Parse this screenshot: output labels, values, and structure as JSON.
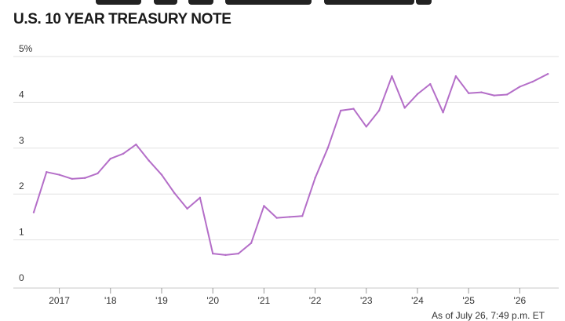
{
  "chart_data": {
    "type": "line",
    "title": "U.S. 10 YEAR TREASURY NOTE",
    "subtitle": "",
    "xlabel": "",
    "ylabel": "",
    "ylim": [
      0,
      5
    ],
    "xlim": [
      2016.5,
      2026.7
    ],
    "y_ticks": [
      {
        "value": 0,
        "label": "0"
      },
      {
        "value": 1,
        "label": "1"
      },
      {
        "value": 2,
        "label": "2"
      },
      {
        "value": 3,
        "label": "3"
      },
      {
        "value": 4,
        "label": "4"
      },
      {
        "value": 5,
        "label": "5%"
      }
    ],
    "x_ticks": [
      {
        "value": 2017,
        "label": "2017"
      },
      {
        "value": 2018,
        "label": "'18"
      },
      {
        "value": 2019,
        "label": "'19"
      },
      {
        "value": 2020,
        "label": "'20"
      },
      {
        "value": 2021,
        "label": "'21"
      },
      {
        "value": 2022,
        "label": "'22"
      },
      {
        "value": 2023,
        "label": "'23"
      },
      {
        "value": 2024,
        "label": "'24"
      },
      {
        "value": 2025,
        "label": "'25"
      },
      {
        "value": 2026,
        "label": "'26"
      }
    ],
    "grid": true,
    "series": [
      {
        "color": "#b46ec8",
        "x": [
          2016.5,
          2016.75,
          2017.0,
          2017.25,
          2017.5,
          2017.75,
          2018.0,
          2018.25,
          2018.5,
          2018.75,
          2019.0,
          2019.25,
          2019.5,
          2019.75,
          2020.0,
          2020.25,
          2020.5,
          2020.75,
          2021.0,
          2021.25,
          2021.5,
          2021.75,
          2022.0,
          2022.25,
          2022.5,
          2022.75,
          2023.0,
          2023.25,
          2023.5,
          2023.75,
          2024.0,
          2024.25,
          2024.5,
          2024.75,
          2025.0,
          2025.25,
          2025.5,
          2025.75,
          2026.0,
          2026.25,
          2026.55
        ],
        "values": [
          1.6,
          2.48,
          2.42,
          2.33,
          2.35,
          2.45,
          2.77,
          2.88,
          3.08,
          2.73,
          2.42,
          2.02,
          1.68,
          1.92,
          0.7,
          0.67,
          0.7,
          0.93,
          1.74,
          1.48,
          1.5,
          1.52,
          2.35,
          3.01,
          3.82,
          3.86,
          3.47,
          3.82,
          4.57,
          3.88,
          4.18,
          4.4,
          3.78,
          4.57,
          4.2,
          4.22,
          4.15,
          4.17,
          4.34,
          4.45,
          4.62
        ]
      }
    ],
    "footnote": "As of July 26, 7:49 p.m. ET"
  }
}
